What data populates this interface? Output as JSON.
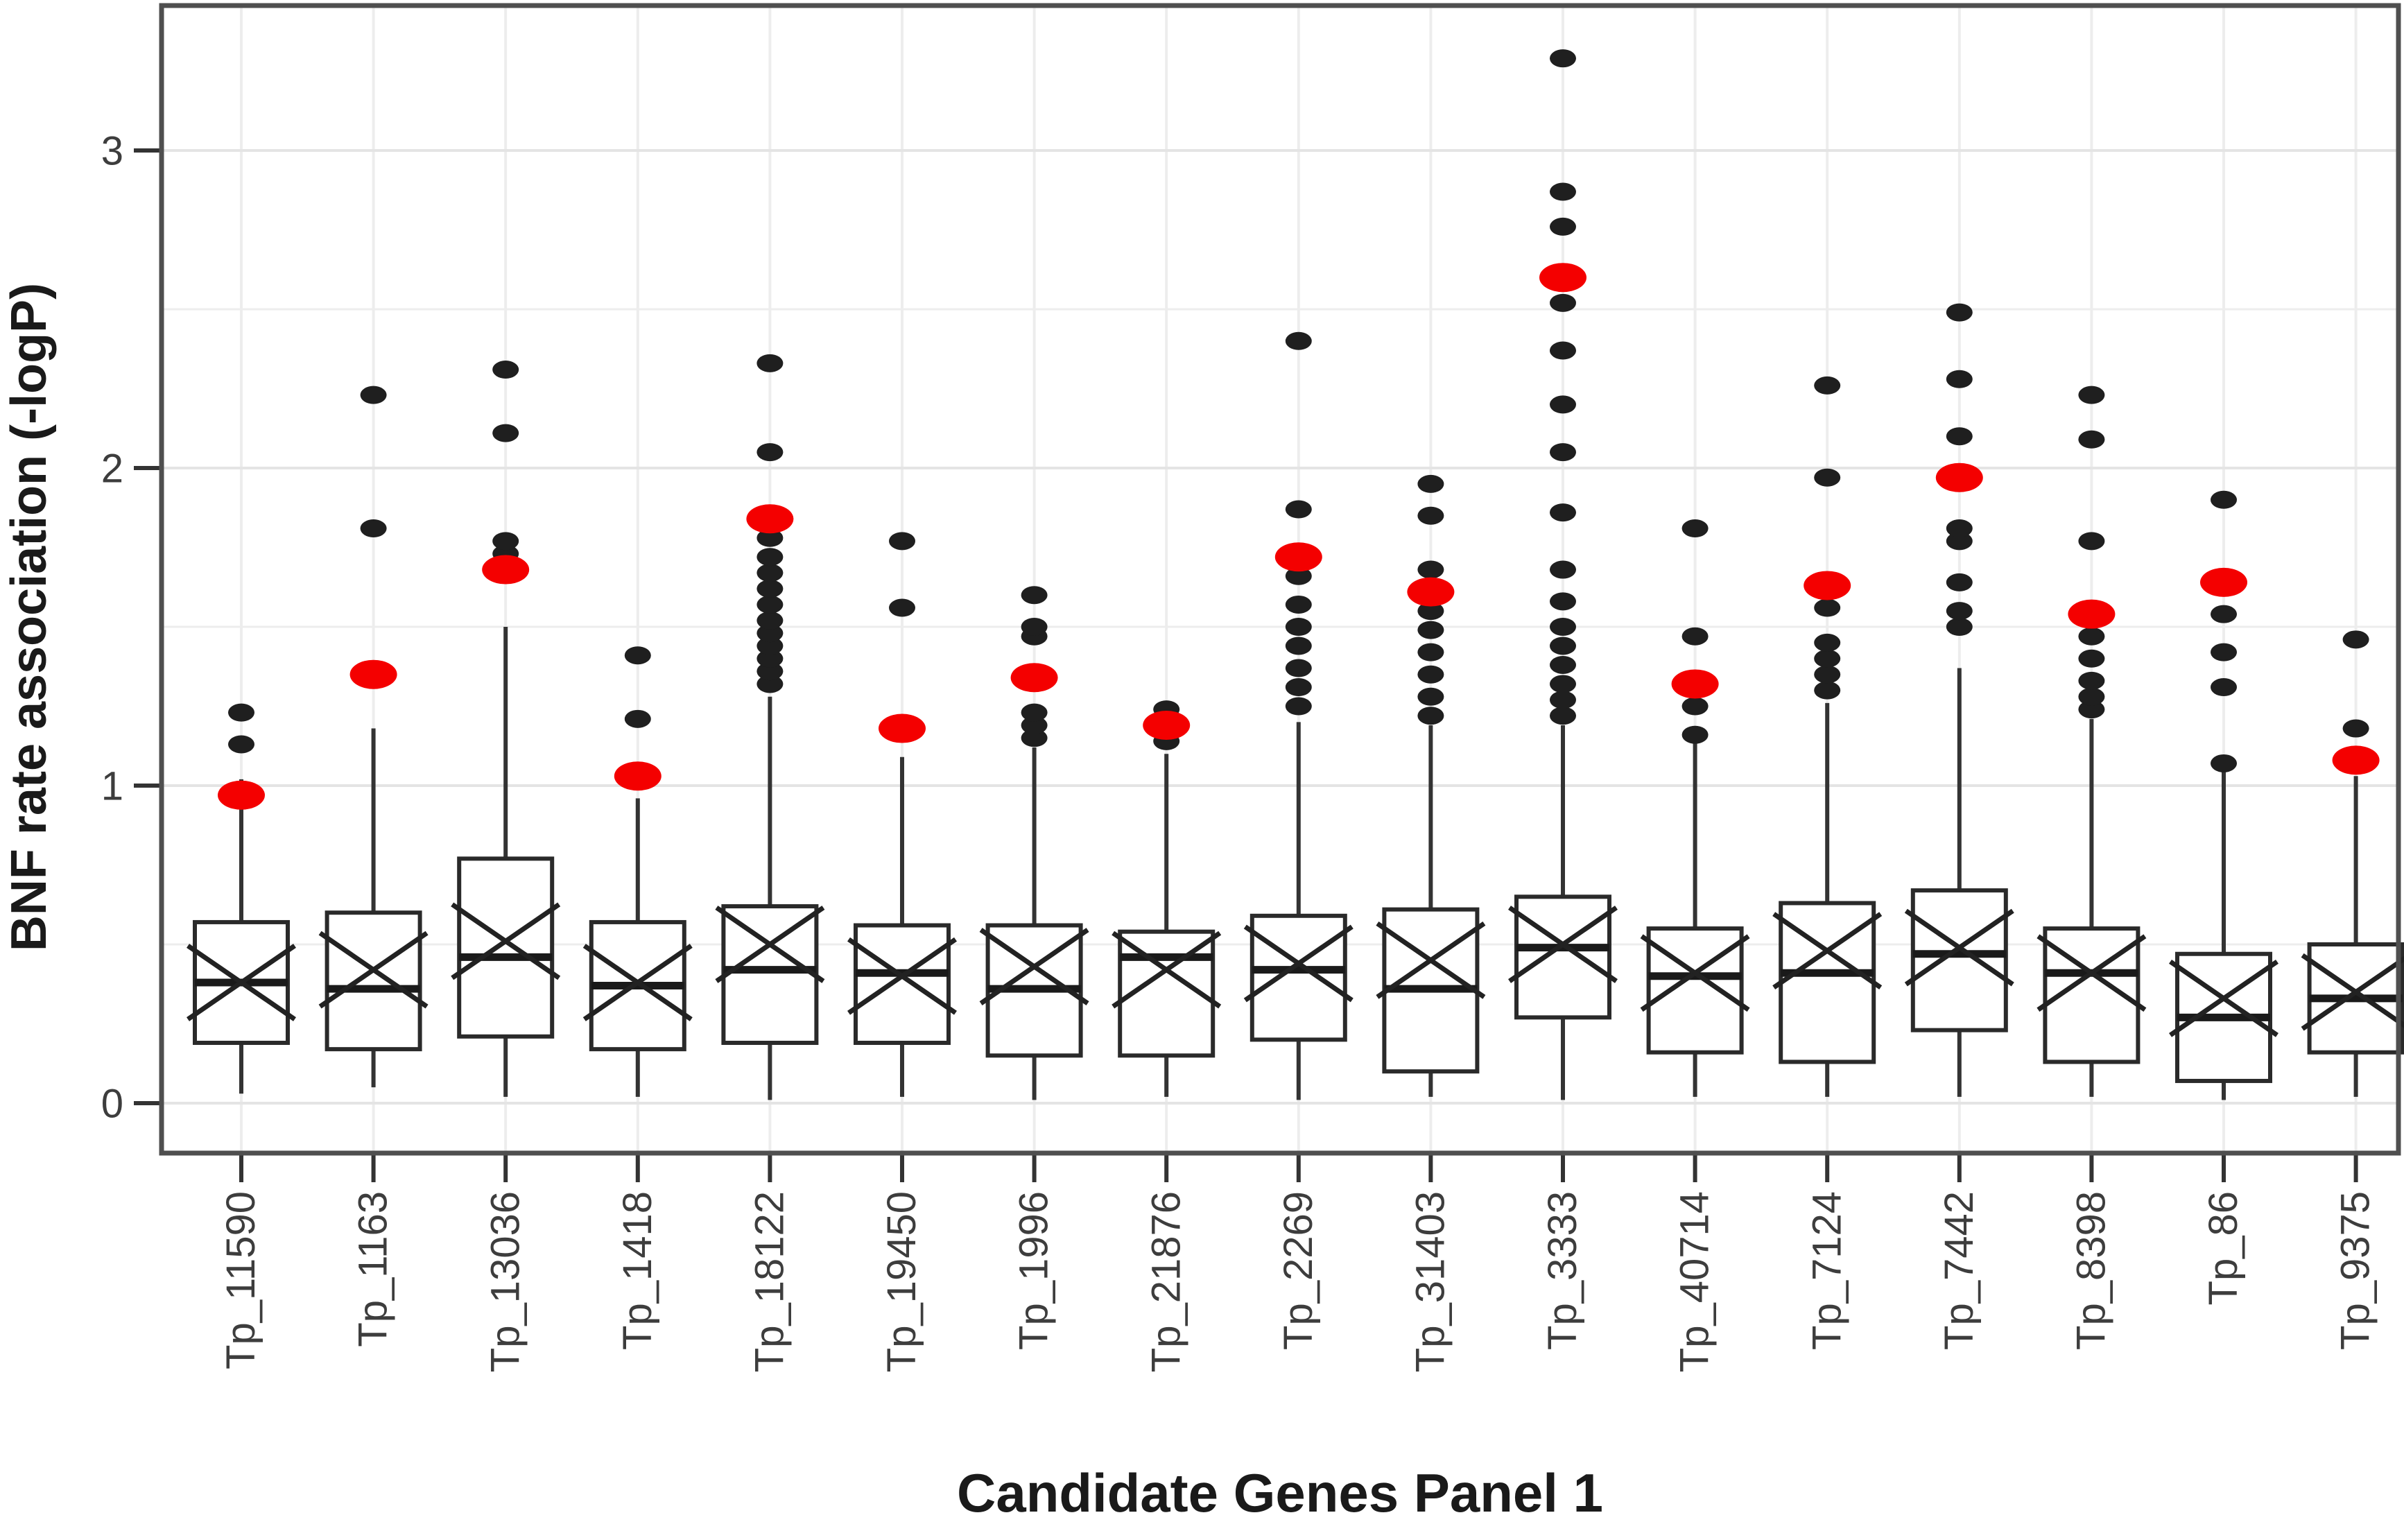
{
  "chart_data": {
    "type": "boxplot",
    "title": "",
    "xlabel": "Candidate Genes Panel 1",
    "ylabel": "BNF rate association (-logP)",
    "ylim": [
      -0.17,
      3.46
    ],
    "yticks": [
      "0",
      "1",
      "2",
      "3"
    ],
    "ytick_values": [
      0,
      1,
      2,
      3
    ],
    "minor_grid_step": 0.5,
    "grid": "horizontal lines every 0.5 unit plus one vertical gridline per category",
    "legend_position": "none",
    "marker_meaning": {
      "red_dot": "observed association value",
      "x_marker": "mean of permuted distribution",
      "black_dots": "outlier points"
    },
    "categories": [
      "Tp_11590",
      "Tp_1163",
      "Tp_13036",
      "Tp_1418",
      "Tp_18122",
      "Tp_19450",
      "Tp_1996",
      "Tp_21876",
      "Tp_2269",
      "Tp_31403",
      "Tp_3333",
      "Tp_40714",
      "Tp_7124",
      "Tp_7442",
      "Tp_8398",
      "Tp_86",
      "Tp_9375"
    ],
    "series": [
      {
        "label": "Tp_11590",
        "whisker_low": 0.03,
        "q1": 0.19,
        "median": 0.38,
        "mean": 0.38,
        "q3": 0.57,
        "whisker_high": 1.02,
        "red_value": 0.97,
        "outliers": [
          1.13,
          1.23
        ]
      },
      {
        "label": "Tp_1163",
        "whisker_low": 0.05,
        "q1": 0.17,
        "median": 0.36,
        "mean": 0.42,
        "q3": 0.6,
        "whisker_high": 1.18,
        "red_value": 1.35,
        "outliers": [
          1.81,
          2.23
        ]
      },
      {
        "label": "Tp_13036",
        "whisker_low": 0.02,
        "q1": 0.21,
        "median": 0.46,
        "mean": 0.51,
        "q3": 0.77,
        "whisker_high": 1.5,
        "red_value": 1.68,
        "outliers": [
          1.73,
          1.77,
          2.11,
          2.31
        ]
      },
      {
        "label": "Tp_1418",
        "whisker_low": 0.02,
        "q1": 0.17,
        "median": 0.37,
        "mean": 0.38,
        "q3": 0.57,
        "whisker_high": 0.96,
        "red_value": 1.03,
        "outliers": [
          1.21,
          1.41
        ]
      },
      {
        "label": "Tp_18122",
        "whisker_low": 0.01,
        "q1": 0.19,
        "median": 0.42,
        "mean": 0.5,
        "q3": 0.62,
        "whisker_high": 1.28,
        "red_value": 1.84,
        "outliers": [
          1.32,
          1.36,
          1.4,
          1.44,
          1.48,
          1.52,
          1.57,
          1.62,
          1.67,
          1.72,
          1.78,
          2.05,
          2.33
        ]
      },
      {
        "label": "Tp_19450",
        "whisker_low": 0.02,
        "q1": 0.19,
        "median": 0.41,
        "mean": 0.4,
        "q3": 0.56,
        "whisker_high": 1.09,
        "red_value": 1.18,
        "outliers": [
          1.56,
          1.77
        ]
      },
      {
        "label": "Tp_1996",
        "whisker_low": 0.01,
        "q1": 0.15,
        "median": 0.36,
        "mean": 0.43,
        "q3": 0.56,
        "whisker_high": 1.12,
        "red_value": 1.34,
        "outliers": [
          1.15,
          1.19,
          1.23,
          1.47,
          1.5,
          1.6
        ]
      },
      {
        "label": "Tp_21876",
        "whisker_low": 0.02,
        "q1": 0.15,
        "median": 0.46,
        "mean": 0.42,
        "q3": 0.54,
        "whisker_high": 1.1,
        "red_value": 1.19,
        "outliers": [
          1.14,
          1.24
        ]
      },
      {
        "label": "Tp_2269",
        "whisker_low": 0.01,
        "q1": 0.2,
        "median": 0.42,
        "mean": 0.44,
        "q3": 0.59,
        "whisker_high": 1.2,
        "red_value": 1.72,
        "outliers": [
          1.25,
          1.31,
          1.37,
          1.44,
          1.5,
          1.57,
          1.66,
          1.87,
          2.4
        ]
      },
      {
        "label": "Tp_31403",
        "whisker_low": 0.02,
        "q1": 0.1,
        "median": 0.36,
        "mean": 0.45,
        "q3": 0.61,
        "whisker_high": 1.19,
        "red_value": 1.61,
        "outliers": [
          1.22,
          1.28,
          1.35,
          1.42,
          1.49,
          1.55,
          1.68,
          1.85,
          1.95
        ]
      },
      {
        "label": "Tp_3333",
        "whisker_low": 0.01,
        "q1": 0.27,
        "median": 0.49,
        "mean": 0.5,
        "q3": 0.65,
        "whisker_high": 1.19,
        "red_value": 2.6,
        "outliers": [
          1.22,
          1.27,
          1.32,
          1.38,
          1.44,
          1.5,
          1.58,
          1.68,
          1.86,
          2.05,
          2.2,
          2.37,
          2.52,
          2.76,
          2.87,
          3.29
        ]
      },
      {
        "label": "Tp_40714",
        "whisker_low": 0.02,
        "q1": 0.16,
        "median": 0.4,
        "mean": 0.41,
        "q3": 0.55,
        "whisker_high": 1.15,
        "red_value": 1.32,
        "outliers": [
          1.16,
          1.25,
          1.47,
          1.81
        ]
      },
      {
        "label": "Tp_7124",
        "whisker_low": 0.02,
        "q1": 0.13,
        "median": 0.41,
        "mean": 0.48,
        "q3": 0.63,
        "whisker_high": 1.26,
        "red_value": 1.63,
        "outliers": [
          1.3,
          1.35,
          1.4,
          1.45,
          1.56,
          1.97,
          2.26
        ]
      },
      {
        "label": "Tp_7442",
        "whisker_low": 0.02,
        "q1": 0.23,
        "median": 0.47,
        "mean": 0.49,
        "q3": 0.67,
        "whisker_high": 1.37,
        "red_value": 1.97,
        "outliers": [
          1.5,
          1.55,
          1.64,
          1.77,
          1.81,
          2.1,
          2.28,
          2.49
        ]
      },
      {
        "label": "Tp_8398",
        "whisker_low": 0.02,
        "q1": 0.13,
        "median": 0.41,
        "mean": 0.41,
        "q3": 0.55,
        "whisker_high": 1.21,
        "red_value": 1.54,
        "outliers": [
          1.24,
          1.28,
          1.33,
          1.4,
          1.47,
          1.77,
          2.09,
          2.23
        ]
      },
      {
        "label": "Tp_86",
        "whisker_low": 0.01,
        "q1": 0.07,
        "median": 0.27,
        "mean": 0.33,
        "q3": 0.47,
        "whisker_high": 1.05,
        "red_value": 1.64,
        "outliers": [
          1.07,
          1.31,
          1.42,
          1.54,
          1.9
        ]
      },
      {
        "label": "Tp_9375",
        "whisker_low": 0.02,
        "q1": 0.16,
        "median": 0.33,
        "mean": 0.35,
        "q3": 0.5,
        "whisker_high": 1.03,
        "red_value": 1.08,
        "outliers": [
          1.18,
          1.46
        ]
      }
    ]
  },
  "colors": {
    "background": "#ffffff",
    "panel_border": "#4f4f4f",
    "box_stroke": "#2a2a2a",
    "box_fill": "#ffffff",
    "median": "#1a1a1a",
    "mean_x": "#222222",
    "whisker": "#333333",
    "outlier_dot": "#1f1f1f",
    "red_dot": "#f40000",
    "grid_major": "#e4e4e4",
    "grid_minor": "#ededed",
    "grid_vertical": "#ededed",
    "tick": "#333333",
    "tick_label": "#3d3d3d",
    "axis_title": "#1a1a1a"
  }
}
